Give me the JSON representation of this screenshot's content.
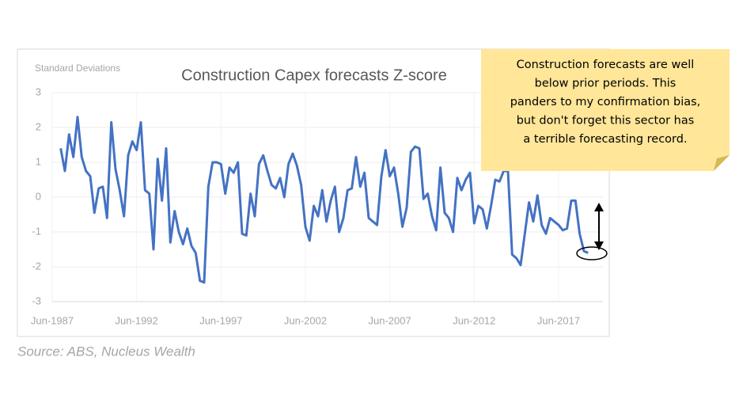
{
  "chart_data": {
    "type": "line",
    "title": "Construction Capex forecasts Z-score",
    "y_label": "Standard Deviations",
    "source": "Source: ABS, Nucleus Wealth",
    "note": [
      "Construction forecasts are well",
      "below prior periods. This",
      "panders to my confirmation bias,",
      "but don't forget this sector has",
      "a terrible forecasting record."
    ],
    "categories": [
      "Jun-1987",
      null,
      null,
      null,
      null,
      null,
      null,
      null,
      null,
      null,
      null,
      null,
      null,
      null,
      null,
      null,
      null,
      null,
      null,
      null,
      "Jun-1992",
      null,
      null,
      null,
      null,
      null,
      null,
      null,
      null,
      null,
      null,
      null,
      null,
      null,
      null,
      null,
      null,
      null,
      null,
      null,
      "Jun-1997",
      null,
      null,
      null,
      null,
      null,
      null,
      null,
      null,
      null,
      null,
      null,
      null,
      null,
      null,
      null,
      null,
      null,
      null,
      null,
      "Jun-2002",
      null,
      null,
      null,
      null,
      null,
      null,
      null,
      null,
      null,
      null,
      null,
      null,
      null,
      null,
      null,
      null,
      null,
      null,
      null,
      "Jun-2007",
      null,
      null,
      null,
      null,
      null,
      null,
      null,
      null,
      null,
      null,
      null,
      null,
      null,
      null,
      null,
      null,
      null,
      null,
      null,
      "Jun-2012",
      null,
      null,
      null,
      null,
      null,
      null,
      null,
      null,
      null,
      null,
      null,
      null,
      null,
      null,
      null,
      null,
      null,
      null,
      null,
      "Jun-2017",
      null,
      null,
      null,
      null,
      null,
      null,
      null
    ],
    "series": [
      {
        "name": "Construction Capex forecasts Z-score",
        "color": "#4472c4",
        "values": [
          null,
          null,
          1.4,
          0.75,
          1.8,
          1.15,
          2.3,
          1.15,
          0.75,
          0.6,
          -0.45,
          0.25,
          0.3,
          -0.6,
          2.15,
          0.8,
          0.2,
          -0.55,
          1.2,
          1.6,
          1.35,
          2.15,
          0.2,
          0.1,
          -1.5,
          1.1,
          -0.1,
          1.4,
          -1.3,
          -0.4,
          -1.0,
          -1.35,
          -0.9,
          -1.4,
          -1.6,
          -2.4,
          -2.45,
          0.3,
          1.0,
          1.0,
          0.95,
          0.1,
          0.85,
          0.7,
          1.0,
          -1.05,
          -1.1,
          0.1,
          -0.55,
          0.95,
          1.2,
          0.75,
          0.35,
          0.25,
          0.55,
          0.0,
          0.95,
          1.25,
          0.9,
          0.35,
          -0.85,
          -1.25,
          -0.25,
          -0.55,
          0.2,
          -0.7,
          -0.1,
          0.3,
          -1.0,
          -0.6,
          0.2,
          0.25,
          1.15,
          0.3,
          0.7,
          -0.6,
          -0.7,
          -0.8,
          0.6,
          1.35,
          0.6,
          0.85,
          0.1,
          -0.85,
          -0.3,
          1.3,
          1.45,
          1.4,
          -0.05,
          0.1,
          -0.55,
          -0.95,
          0.85,
          -0.45,
          -0.6,
          -1.0,
          0.55,
          0.2,
          0.5,
          0.7,
          -0.75,
          -0.25,
          -0.35,
          -0.9,
          -0.25,
          0.5,
          0.45,
          0.75,
          0.75,
          -1.65,
          -1.75,
          -1.95,
          -1.05,
          -0.15,
          -0.7,
          0.05,
          -0.8,
          -1.05,
          -0.6,
          -0.7,
          -0.8,
          -0.95,
          -0.9,
          -0.1,
          -0.1,
          -1.05,
          -1.55,
          -1.6
        ]
      }
    ],
    "ylim": [
      -3,
      3
    ],
    "yticks": [
      -3,
      -2,
      -1,
      0,
      1,
      2,
      3
    ],
    "grid": true
  }
}
